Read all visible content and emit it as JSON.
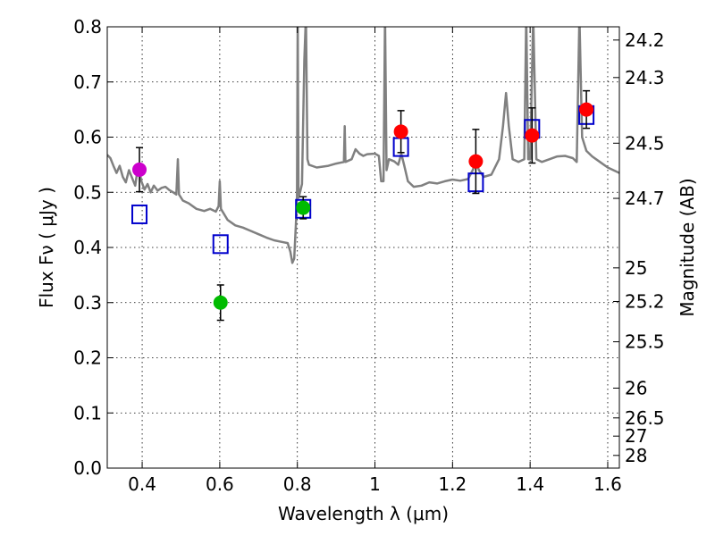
{
  "chart_data": {
    "type": "scatter",
    "xlabel": "Wavelength  λ (μm)",
    "ylabel": "Flux  Fν  ( μJy )",
    "ylabel_right": "Magnitude (AB)",
    "xlim": [
      0.31,
      1.63
    ],
    "ylim": [
      0.0,
      0.8
    ],
    "grid": true,
    "x_ticks": [
      0.4,
      0.6,
      0.8,
      1.0,
      1.2,
      1.4,
      1.6
    ],
    "x_tick_labels": [
      "0.4",
      "0.6",
      "0.8",
      "1",
      "1.2",
      "1.4",
      "1.6"
    ],
    "y_ticks": [
      0.0,
      0.1,
      0.2,
      0.3,
      0.4,
      0.5,
      0.6,
      0.7,
      0.8
    ],
    "y_tick_labels": [
      "0.0",
      "0.1",
      "0.2",
      "0.3",
      "0.4",
      "0.5",
      "0.6",
      "0.7",
      "0.8"
    ],
    "right_ticks": [
      {
        "label": "24.2",
        "flux": 0.776
      },
      {
        "label": "24.3",
        "flux": 0.708
      },
      {
        "label": "24.5",
        "flux": 0.589
      },
      {
        "label": "24.7",
        "flux": 0.489
      },
      {
        "label": "25",
        "flux": 0.363
      },
      {
        "label": "25.2",
        "flux": 0.302
      },
      {
        "label": "25.5",
        "flux": 0.229
      },
      {
        "label": "26",
        "flux": 0.145
      },
      {
        "label": "26.5",
        "flux": 0.091
      },
      {
        "label": "27",
        "flux": 0.058
      },
      {
        "label": "28",
        "flux": 0.023
      }
    ],
    "series": [
      {
        "marker": "circle",
        "color": "#cc00cc",
        "points": [
          {
            "x": 0.393,
            "y": 0.541,
            "err": 0.04
          }
        ]
      },
      {
        "marker": "circle",
        "color": "#00bb00",
        "points": [
          {
            "x": 0.602,
            "y": 0.3,
            "err": 0.032
          },
          {
            "x": 0.815,
            "y": 0.472,
            "err": 0.02
          }
        ]
      },
      {
        "marker": "circle",
        "color": "#ff0000",
        "points": [
          {
            "x": 1.067,
            "y": 0.61,
            "err": 0.038
          },
          {
            "x": 1.26,
            "y": 0.556,
            "err": 0.058
          },
          {
            "x": 1.405,
            "y": 0.603,
            "err": 0.05
          },
          {
            "x": 1.545,
            "y": 0.65,
            "err": 0.034
          }
        ]
      },
      {
        "marker": "open-square",
        "color": "#0000cc",
        "points": [
          {
            "x": 0.393,
            "y": 0.46
          },
          {
            "x": 0.602,
            "y": 0.406
          },
          {
            "x": 0.815,
            "y": 0.47
          },
          {
            "x": 1.067,
            "y": 0.582
          },
          {
            "x": 1.26,
            "y": 0.518
          },
          {
            "x": 1.405,
            "y": 0.615
          },
          {
            "x": 1.545,
            "y": 0.64
          }
        ]
      }
    ],
    "model_spectrum": {
      "color": "#808080",
      "points": [
        [
          0.31,
          0.568
        ],
        [
          0.318,
          0.562
        ],
        [
          0.326,
          0.548
        ],
        [
          0.334,
          0.535
        ],
        [
          0.342,
          0.548
        ],
        [
          0.35,
          0.528
        ],
        [
          0.358,
          0.518
        ],
        [
          0.366,
          0.54
        ],
        [
          0.374,
          0.526
        ],
        [
          0.382,
          0.512
        ],
        [
          0.39,
          0.55
        ],
        [
          0.398,
          0.52
        ],
        [
          0.406,
          0.505
        ],
        [
          0.414,
          0.515
        ],
        [
          0.422,
          0.5
        ],
        [
          0.43,
          0.512
        ],
        [
          0.44,
          0.503
        ],
        [
          0.45,
          0.508
        ],
        [
          0.46,
          0.51
        ],
        [
          0.47,
          0.504
        ],
        [
          0.48,
          0.5
        ],
        [
          0.488,
          0.496
        ],
        [
          0.492,
          0.56
        ],
        [
          0.495,
          0.496
        ],
        [
          0.505,
          0.485
        ],
        [
          0.52,
          0.48
        ],
        [
          0.54,
          0.47
        ],
        [
          0.56,
          0.466
        ],
        [
          0.575,
          0.47
        ],
        [
          0.59,
          0.465
        ],
        [
          0.597,
          0.475
        ],
        [
          0.6,
          0.52
        ],
        [
          0.603,
          0.47
        ],
        [
          0.62,
          0.45
        ],
        [
          0.64,
          0.44
        ],
        [
          0.66,
          0.436
        ],
        [
          0.68,
          0.43
        ],
        [
          0.7,
          0.424
        ],
        [
          0.72,
          0.418
        ],
        [
          0.74,
          0.413
        ],
        [
          0.76,
          0.41
        ],
        [
          0.775,
          0.408
        ],
        [
          0.782,
          0.392
        ],
        [
          0.787,
          0.372
        ],
        [
          0.792,
          0.38
        ],
        [
          0.796,
          0.44
        ],
        [
          0.799,
          0.49
        ],
        [
          0.801,
          0.82
        ],
        [
          0.803,
          0.49
        ],
        [
          0.807,
          0.5
        ],
        [
          0.812,
          0.515
        ],
        [
          0.818,
          0.74
        ],
        [
          0.822,
          0.82
        ],
        [
          0.826,
          0.56
        ],
        [
          0.83,
          0.55
        ],
        [
          0.85,
          0.545
        ],
        [
          0.88,
          0.548
        ],
        [
          0.9,
          0.552
        ],
        [
          0.92,
          0.555
        ],
        [
          0.922,
          0.62
        ],
        [
          0.924,
          0.555
        ],
        [
          0.94,
          0.56
        ],
        [
          0.95,
          0.578
        ],
        [
          0.96,
          0.57
        ],
        [
          0.97,
          0.566
        ],
        [
          0.98,
          0.569
        ],
        [
          1.0,
          0.57
        ],
        [
          1.01,
          0.566
        ],
        [
          1.016,
          0.52
        ],
        [
          1.022,
          0.52
        ],
        [
          1.026,
          0.82
        ],
        [
          1.03,
          0.54
        ],
        [
          1.036,
          0.56
        ],
        [
          1.05,
          0.556
        ],
        [
          1.06,
          0.55
        ],
        [
          1.068,
          0.57
        ],
        [
          1.075,
          0.55
        ],
        [
          1.085,
          0.52
        ],
        [
          1.1,
          0.51
        ],
        [
          1.12,
          0.512
        ],
        [
          1.14,
          0.518
        ],
        [
          1.16,
          0.516
        ],
        [
          1.18,
          0.52
        ],
        [
          1.2,
          0.523
        ],
        [
          1.22,
          0.521
        ],
        [
          1.24,
          0.524
        ],
        [
          1.252,
          0.54
        ],
        [
          1.26,
          0.555
        ],
        [
          1.268,
          0.54
        ],
        [
          1.28,
          0.528
        ],
        [
          1.3,
          0.532
        ],
        [
          1.32,
          0.56
        ],
        [
          1.33,
          0.62
        ],
        [
          1.338,
          0.68
        ],
        [
          1.345,
          0.62
        ],
        [
          1.355,
          0.56
        ],
        [
          1.37,
          0.555
        ],
        [
          1.385,
          0.56
        ],
        [
          1.39,
          0.82
        ],
        [
          1.395,
          0.56
        ],
        [
          1.4,
          0.56
        ],
        [
          1.408,
          0.82
        ],
        [
          1.416,
          0.56
        ],
        [
          1.43,
          0.555
        ],
        [
          1.45,
          0.56
        ],
        [
          1.47,
          0.565
        ],
        [
          1.49,
          0.566
        ],
        [
          1.51,
          0.562
        ],
        [
          1.52,
          0.555
        ],
        [
          1.527,
          0.82
        ],
        [
          1.534,
          0.6
        ],
        [
          1.545,
          0.575
        ],
        [
          1.56,
          0.565
        ],
        [
          1.58,
          0.555
        ],
        [
          1.6,
          0.545
        ],
        [
          1.63,
          0.535
        ]
      ]
    }
  }
}
